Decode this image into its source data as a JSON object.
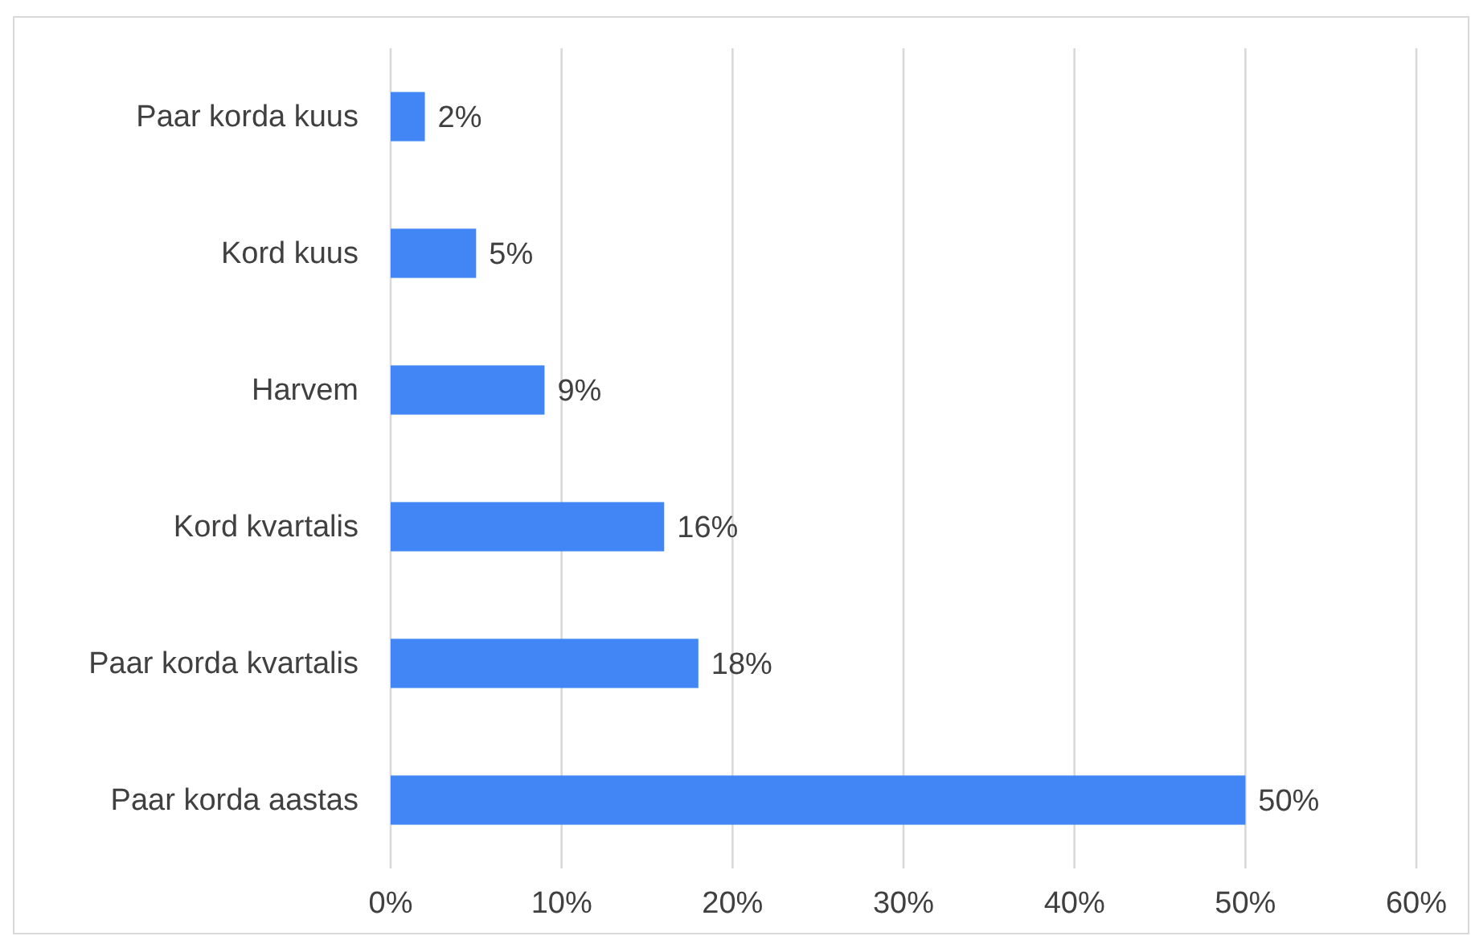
{
  "chart_data": {
    "type": "bar",
    "orientation": "horizontal",
    "categories": [
      "Paar korda kuus",
      "Kord kuus",
      "Harvem",
      "Kord kvartalis",
      "Paar korda kvartalis",
      "Paar korda aastas"
    ],
    "values": [
      2,
      5,
      9,
      16,
      18,
      50
    ],
    "value_labels": [
      "2%",
      "5%",
      "9%",
      "16%",
      "18%",
      "50%"
    ],
    "color": "#4285f4",
    "xlim": [
      0,
      60
    ],
    "xticks": [
      {
        "value": 0,
        "label": "0%"
      },
      {
        "value": 10,
        "label": "10%"
      },
      {
        "value": 20,
        "label": "20%"
      },
      {
        "value": 30,
        "label": "30%"
      },
      {
        "value": 40,
        "label": "40%"
      },
      {
        "value": 50,
        "label": "50%"
      },
      {
        "value": 60,
        "label": "60%"
      }
    ],
    "grid": "x"
  }
}
